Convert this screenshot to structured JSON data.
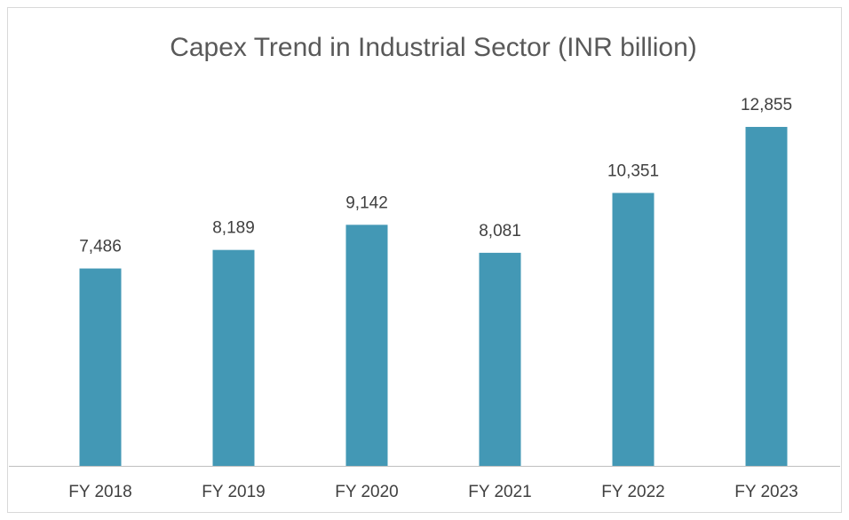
{
  "chart_data": {
    "type": "bar",
    "title": "Capex Trend in Industrial Sector (INR billion)",
    "categories": [
      "FY 2018",
      "FY 2019",
      "FY 2020",
      "FY 2021",
      "FY 2022",
      "FY 2023"
    ],
    "values": [
      7486,
      8189,
      9142,
      8081,
      10351,
      12855
    ],
    "value_labels": [
      "7,486",
      "8,189",
      "9,142",
      "8,081",
      "10,351",
      "12,855"
    ],
    "color": "#4398b5",
    "ylim": [
      0,
      14000
    ]
  }
}
